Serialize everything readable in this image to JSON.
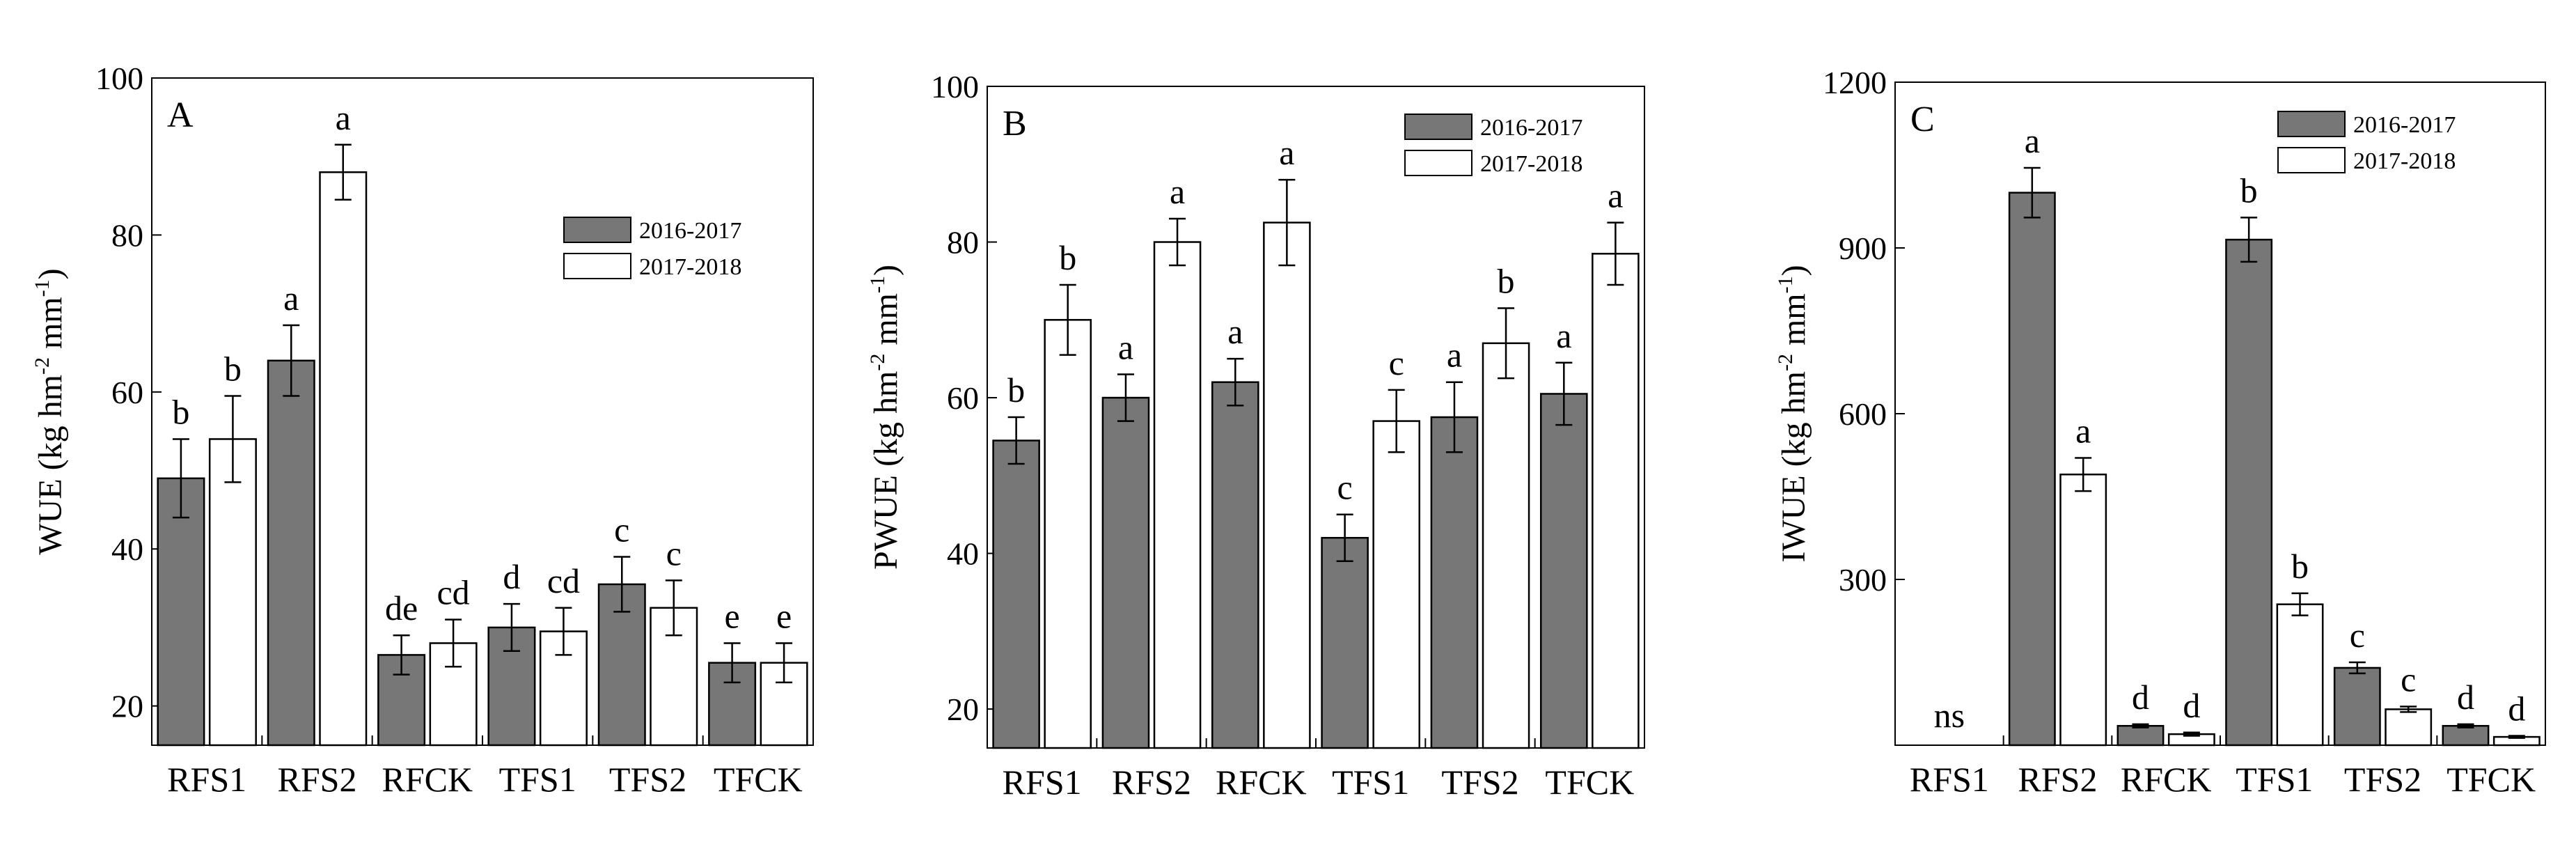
{
  "legend": {
    "series": [
      "2016-2017",
      "2017-2018"
    ]
  },
  "colors": {
    "series_fill": [
      "#777777",
      "#ffffff"
    ],
    "stroke": "#000000"
  },
  "chart_data": [
    {
      "type": "bar",
      "panel": "A",
      "ylabel": "WUE (kg hm-2 mm-1)",
      "ylabel_parts": {
        "main": "WUE (kg hm",
        "sup1": "-2",
        "mid": " mm",
        "sup2": "-1",
        "end": ")"
      },
      "ylim": [
        15,
        100
      ],
      "yticks": [
        20,
        40,
        60,
        80,
        100
      ],
      "categories": [
        "RFS1",
        "RFS2",
        "RFCK",
        "TFS1",
        "TFS2",
        "TFCK"
      ],
      "legend_position": "middle-right",
      "series": [
        {
          "name": "2016-2017",
          "values": [
            49,
            64,
            26.5,
            30,
            35.5,
            25.5
          ],
          "errors": [
            5,
            4.5,
            2.5,
            3,
            3.5,
            2.5
          ],
          "labels": [
            "b",
            "a",
            "de",
            "d",
            "c",
            "e"
          ]
        },
        {
          "name": "2017-2018",
          "values": [
            54,
            88,
            28,
            29.5,
            32.5,
            25.5
          ],
          "errors": [
            5.5,
            3.5,
            3,
            3,
            3.5,
            2.5
          ],
          "labels": [
            "b",
            "a",
            "cd",
            "cd",
            "c",
            "e"
          ]
        }
      ]
    },
    {
      "type": "bar",
      "panel": "B",
      "ylabel": "PWUE (kg hm-2 mm-1)",
      "ylabel_parts": {
        "main": "PWUE (kg hm",
        "sup1": "-2",
        "mid": " mm",
        "sup2": "-1",
        "end": ")"
      },
      "ylim": [
        15,
        100
      ],
      "yticks": [
        20,
        40,
        60,
        80,
        100
      ],
      "categories": [
        "RFS1",
        "RFS2",
        "RFCK",
        "TFS1",
        "TFS2",
        "TFCK"
      ],
      "legend_position": "top-right",
      "series": [
        {
          "name": "2016-2017",
          "values": [
            54.5,
            60,
            62,
            42,
            57.5,
            60.5
          ],
          "errors": [
            3,
            3,
            3,
            3,
            4.5,
            4
          ],
          "labels": [
            "b",
            "a",
            "a",
            "c",
            "a",
            "a"
          ]
        },
        {
          "name": "2017-2018",
          "values": [
            70,
            80,
            82.5,
            57,
            67,
            78.5
          ],
          "errors": [
            4.5,
            3,
            5.5,
            4,
            4.5,
            4
          ],
          "labels": [
            "b",
            "a",
            "a",
            "c",
            "b",
            "a"
          ]
        }
      ]
    },
    {
      "type": "bar",
      "panel": "C",
      "ylabel": "IWUE (kg hm-2 mm-1)",
      "ylabel_parts": {
        "main": "IWUE (kg hm",
        "sup1": "-2",
        "mid": " mm",
        "sup2": "-1",
        "end": ")"
      },
      "ylim": [
        0,
        1200
      ],
      "yticks": [
        300,
        600,
        900,
        1200
      ],
      "categories": [
        "RFS1",
        "RFS2",
        "RFCK",
        "TFS1",
        "TFS2",
        "TFCK"
      ],
      "legend_position": "top-right",
      "category_note": {
        "index": 0,
        "text": "ns"
      },
      "series": [
        {
          "name": "2016-2017",
          "values": [
            0,
            1000,
            35,
            915,
            140,
            35
          ],
          "errors": [
            0,
            45,
            3,
            40,
            10,
            3
          ],
          "labels": [
            "",
            "a",
            "d",
            "b",
            "c",
            "d"
          ]
        },
        {
          "name": "2017-2018",
          "values": [
            0,
            490,
            20,
            255,
            65,
            15
          ],
          "errors": [
            0,
            30,
            3,
            20,
            5,
            2
          ],
          "labels": [
            "",
            "a",
            "d",
            "b",
            "c",
            "d"
          ]
        }
      ]
    }
  ]
}
